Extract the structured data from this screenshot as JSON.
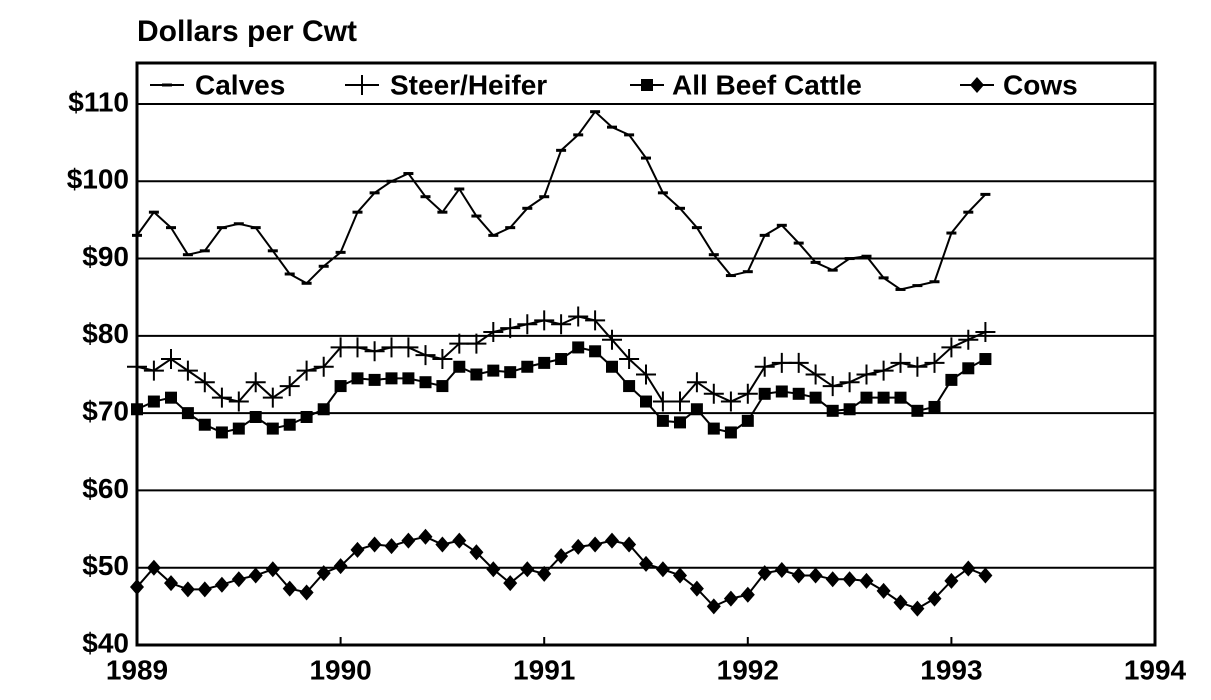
{
  "chart_data": {
    "type": "line",
    "title": "Dollars per Cwt",
    "x": [
      1989,
      1989.083,
      1989.167,
      1989.25,
      1989.333,
      1989.417,
      1989.5,
      1989.583,
      1989.667,
      1989.75,
      1989.833,
      1989.917,
      1990,
      1990.083,
      1990.167,
      1990.25,
      1990.333,
      1990.417,
      1990.5,
      1990.583,
      1990.667,
      1990.75,
      1990.833,
      1990.917,
      1991,
      1991.083,
      1991.167,
      1991.25,
      1991.333,
      1991.417,
      1991.5,
      1991.583,
      1991.667,
      1991.75,
      1991.833,
      1991.917,
      1992,
      1992.083,
      1992.167,
      1992.25,
      1992.333,
      1992.417,
      1992.5,
      1992.583,
      1992.667,
      1992.75,
      1992.833,
      1992.917,
      1993,
      1993.083,
      1993.167
    ],
    "series": [
      {
        "name": "Calves",
        "color": "#000000",
        "marker": "dash",
        "values": [
          93,
          96,
          94,
          90.5,
          91,
          94,
          94.5,
          94,
          91,
          88,
          86.8,
          89,
          90.8,
          96,
          98.5,
          100,
          101,
          98,
          96,
          99,
          95.5,
          93,
          94,
          96.5,
          98,
          104,
          106,
          109,
          107,
          106,
          103,
          98.5,
          96.5,
          94,
          90.5,
          87.8,
          88.3,
          93,
          94.3,
          92,
          89.5,
          88.5,
          90,
          90.3,
          87.5,
          86,
          86.5,
          87,
          93.3,
          96,
          98.3
        ]
      },
      {
        "name": "Steer/Heifer",
        "color": "#000000",
        "marker": "plus",
        "values": [
          76,
          75.5,
          77,
          75.5,
          74,
          72,
          71.5,
          74,
          72,
          73.5,
          75.5,
          76,
          78.5,
          78.5,
          78,
          78.5,
          78.5,
          77.5,
          77,
          79,
          79,
          80.5,
          81,
          81.5,
          82,
          81.5,
          82.5,
          82,
          79.5,
          77,
          75,
          71.5,
          71.5,
          74,
          72.5,
          71.5,
          72.5,
          76,
          76.5,
          76.5,
          75,
          73.5,
          74,
          75,
          75.5,
          76.5,
          76,
          76.5,
          78.5,
          79.5,
          80.5
        ]
      },
      {
        "name": "All Beef Cattle",
        "color": "#000000",
        "marker": "square",
        "values": [
          70.5,
          71.5,
          72,
          70,
          68.5,
          67.5,
          68,
          69.5,
          68,
          68.5,
          69.5,
          70.5,
          73.5,
          74.5,
          74.3,
          74.5,
          74.5,
          74,
          73.5,
          76,
          75,
          75.5,
          75.3,
          76,
          76.5,
          77,
          78.5,
          78,
          76,
          73.5,
          71.5,
          69,
          68.8,
          70.5,
          68,
          67.5,
          69,
          72.5,
          72.8,
          72.5,
          72,
          70.3,
          70.5,
          72,
          72,
          72,
          70.3,
          70.8,
          74.3,
          75.8,
          77
        ]
      },
      {
        "name": "Cows",
        "color": "#000000",
        "marker": "diamond",
        "values": [
          47.5,
          50,
          48,
          47.2,
          47.2,
          47.8,
          48.5,
          49,
          49.8,
          47.3,
          46.8,
          49.3,
          50.2,
          52.3,
          53,
          52.8,
          53.5,
          54,
          53,
          53.5,
          52,
          49.8,
          48,
          49.8,
          49.2,
          51.5,
          52.7,
          53,
          53.5,
          53,
          50.5,
          49.8,
          49,
          47.3,
          45,
          46,
          46.5,
          49.3,
          49.7,
          49,
          49,
          48.5,
          48.5,
          48.3,
          47,
          45.5,
          44.7,
          46,
          48.3,
          49.9,
          49
        ]
      }
    ],
    "xlim": [
      1989,
      1994
    ],
    "xticks": [
      1989,
      1990,
      1991,
      1992,
      1993,
      1994
    ],
    "ylim": [
      40,
      115.3
    ],
    "yticks": [
      {
        "value": 40,
        "label": "$40"
      },
      {
        "value": 50,
        "label": "$50"
      },
      {
        "value": 60,
        "label": "$60"
      },
      {
        "value": 70,
        "label": "$70"
      },
      {
        "value": 80,
        "label": "$80"
      },
      {
        "value": 90,
        "label": "$90"
      },
      {
        "value": 100,
        "label": "$100"
      },
      {
        "value": 110,
        "label": "$110"
      }
    ],
    "grid": true,
    "legend": "top"
  }
}
